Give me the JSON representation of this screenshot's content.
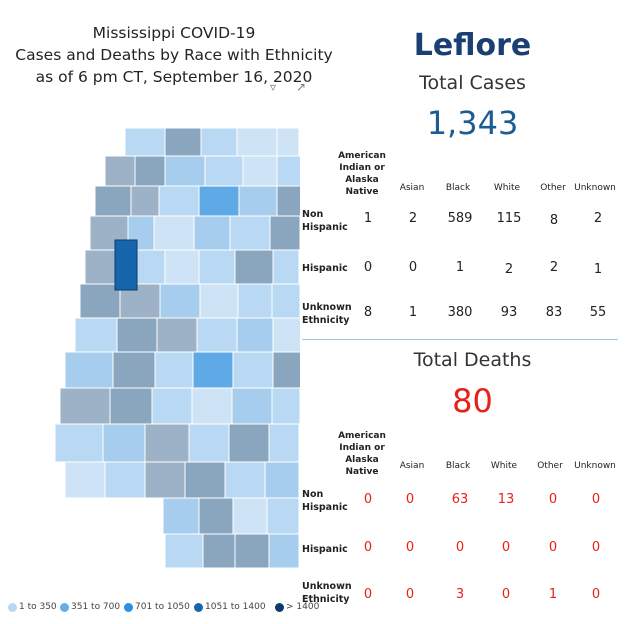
{
  "title": {
    "line1": "Mississippi COVID-19",
    "line2": "Cases and Deaths by Race with Ethnicity",
    "line3": "as of 6 pm CT, September 16, 2020"
  },
  "legend": {
    "items": [
      {
        "label": "1 to 350",
        "color": "#b9d8f3"
      },
      {
        "label": "351 to 700",
        "color": "#63aee8"
      },
      {
        "label": "701 to 1050",
        "color": "#2c8fe0"
      },
      {
        "label": "1051 to 1400",
        "color": "#1566ac"
      },
      {
        "label": "> 1400",
        "color": "#0b3a6b"
      }
    ]
  },
  "colors": {
    "county_title": "#1b3f73",
    "cases": "#1b5c93",
    "deaths": "#e8201a",
    "selected_county": "#1566ac"
  },
  "county": "Leflore",
  "cases": {
    "title": "Total Cases",
    "total": "1,343",
    "columns": [
      "American Indian or Alaska Native",
      "Asian",
      "Black",
      "White",
      "Other",
      "Unknown"
    ],
    "rows": [
      {
        "label": "Non Hispanic",
        "values": [
          "1",
          "2",
          "589",
          "115",
          "8",
          "2"
        ]
      },
      {
        "label": "Hispanic",
        "values": [
          "0",
          "0",
          "1",
          "2",
          "2",
          "1"
        ]
      },
      {
        "label": "Unknown Ethnicity",
        "values": [
          "8",
          "1",
          "380",
          "93",
          "83",
          "55"
        ]
      }
    ]
  },
  "deaths": {
    "title": "Total Deaths",
    "total": "80",
    "columns": [
      "American Indian or Alaska Native",
      "Asian",
      "Black",
      "White",
      "Other",
      "Unknown"
    ],
    "rows": [
      {
        "label": "Non Hispanic",
        "values": [
          "0",
          "0",
          "63",
          "13",
          "0",
          "0"
        ]
      },
      {
        "label": "Hispanic",
        "values": [
          "0",
          "0",
          "0",
          "0",
          "0",
          "0"
        ]
      },
      {
        "label": "Unknown Ethnicity",
        "values": [
          "0",
          "0",
          "3",
          "0",
          "1",
          "0"
        ]
      }
    ]
  }
}
